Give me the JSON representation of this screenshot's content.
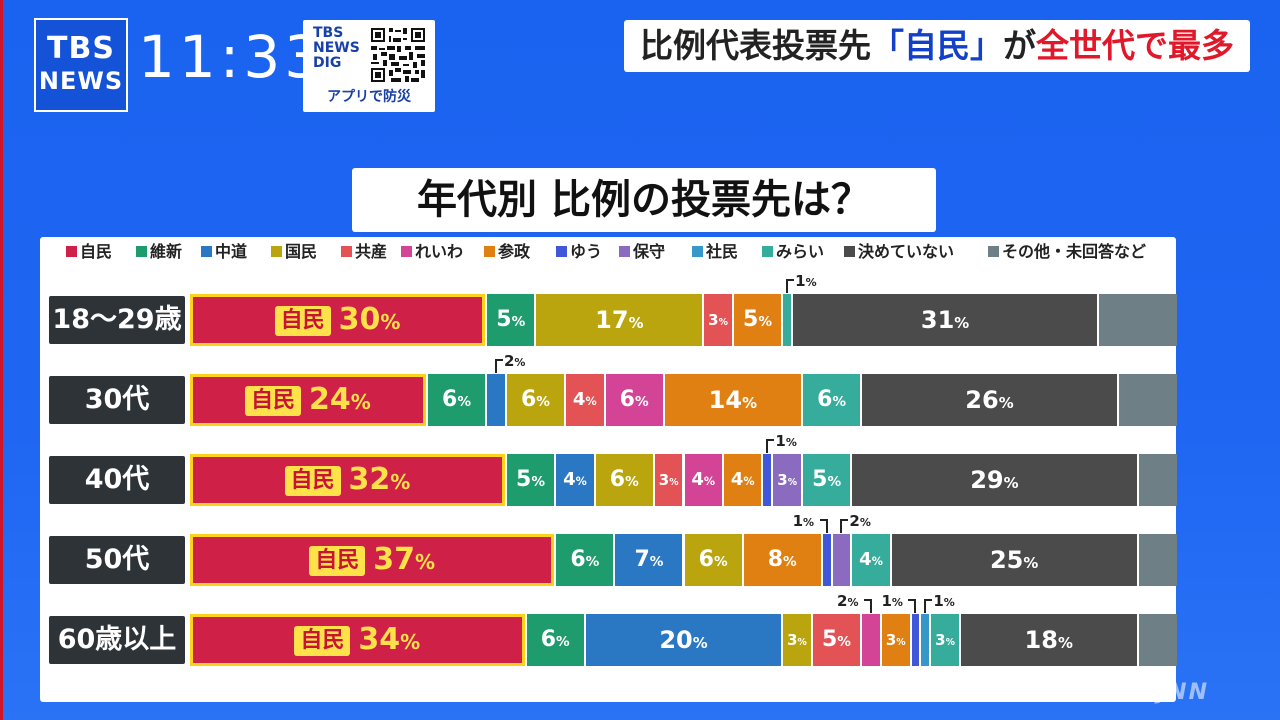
{
  "header": {
    "logo_line1": "TBS",
    "logo_line2": "NEWS",
    "clock": "11:33",
    "dig_brand": [
      "TBS",
      "NEWS",
      "DIG"
    ],
    "dig_caption": "アプリで防災",
    "headline_pre": "比例代表投票先",
    "headline_mid": "「自民」",
    "headline_ga": "が",
    "headline_post": "全世代で最多"
  },
  "subtitle": "年代別 比例の投票先は？",
  "watermark": "JNN",
  "colors": {
    "ldp": "#cf2147",
    "ishin": "#1e9c6e",
    "chudo": "#2a78c4",
    "kokumin": "#bba50f",
    "kyosan": "#e35356",
    "reiwa": "#d34396",
    "sansei": "#e08012",
    "yuu": "#3f57d8",
    "hoshu": "#8a6bbf",
    "shamin": "#3598c8",
    "mirai": "#36ad9c",
    "undecided": "#4b4b4b",
    "other": "#6e8086"
  },
  "chart_data": {
    "type": "bar",
    "stacked": true,
    "orientation": "horizontal",
    "unit": "%",
    "ldp_badge": "自民",
    "parties": [
      {
        "key": "ldp",
        "name": "自民"
      },
      {
        "key": "ishin",
        "name": "維新"
      },
      {
        "key": "chudo",
        "name": "中道"
      },
      {
        "key": "kokumin",
        "name": "国民"
      },
      {
        "key": "kyosan",
        "name": "共産"
      },
      {
        "key": "reiwa",
        "name": "れいわ"
      },
      {
        "key": "sansei",
        "name": "参政"
      },
      {
        "key": "yuu",
        "name": "ゆう"
      },
      {
        "key": "hoshu",
        "name": "保守"
      },
      {
        "key": "shamin",
        "name": "社民"
      },
      {
        "key": "mirai",
        "name": "みらい"
      },
      {
        "key": "undecided",
        "name": "決めていない"
      },
      {
        "key": "other",
        "name": "その他・未回答など"
      }
    ],
    "categories": [
      "18〜29歳",
      "30代",
      "40代",
      "50代",
      "60歳以上"
    ],
    "rows": [
      {
        "label": "18〜29歳",
        "values": {
          "ldp": 30,
          "ishin": 5,
          "kokumin": 17,
          "kyosan": 3,
          "sansei": 5,
          "mirai": 1,
          "undecided": 31
        }
      },
      {
        "label": "30代",
        "values": {
          "ldp": 24,
          "ishin": 6,
          "chudo": 2,
          "kokumin": 6,
          "kyosan": 4,
          "reiwa": 6,
          "sansei": 14,
          "mirai": 6,
          "undecided": 26
        }
      },
      {
        "label": "40代",
        "values": {
          "ldp": 32,
          "ishin": 5,
          "chudo": 4,
          "kokumin": 6,
          "kyosan": 3,
          "reiwa": 4,
          "sansei": 4,
          "yuu": 1,
          "hoshu": 3,
          "mirai": 5,
          "undecided": 29
        }
      },
      {
        "label": "50代",
        "values": {
          "ldp": 37,
          "ishin": 6,
          "chudo": 7,
          "kokumin": 6,
          "sansei": 8,
          "yuu": 1,
          "hoshu": 2,
          "mirai": 4,
          "undecided": 25
        }
      },
      {
        "label": "60歳以上",
        "values": {
          "ldp": 34,
          "ishin": 6,
          "chudo": 20,
          "kokumin": 3,
          "kyosan": 5,
          "reiwa": 2,
          "sansei": 3,
          "yuu": 1,
          "shamin": 1,
          "mirai": 3,
          "undecided": 18
        }
      }
    ],
    "callouts": [
      {
        "row": 0,
        "key": "mirai",
        "side": "left"
      },
      {
        "row": 1,
        "key": "chudo",
        "side": "left"
      },
      {
        "row": 2,
        "key": "yuu",
        "side": "left"
      },
      {
        "row": 3,
        "key": "yuu",
        "side": "right"
      },
      {
        "row": 3,
        "key": "hoshu",
        "side": "left"
      },
      {
        "row": 4,
        "key": "reiwa",
        "side": "right"
      },
      {
        "row": 4,
        "key": "yuu",
        "side": "right"
      },
      {
        "row": 4,
        "key": "shamin",
        "side": "left"
      }
    ]
  }
}
